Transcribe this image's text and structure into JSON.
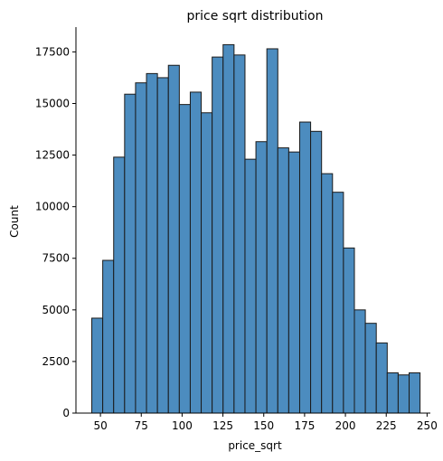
{
  "chart_data": {
    "type": "bar",
    "title": "price sqrt distribution",
    "xlabel": "price_sqrt",
    "ylabel": "Count",
    "bar_color": "#4c8cbf",
    "edge_color": "#1a1a1a",
    "xlim": [
      35,
      252
    ],
    "ylim": [
      0,
      18700
    ],
    "x_ticks": [
      50,
      75,
      100,
      125,
      150,
      175,
      200,
      225,
      250
    ],
    "y_ticks": [
      0,
      2500,
      5000,
      7500,
      10000,
      12500,
      15000,
      17500
    ],
    "bin_edges": [
      44.7,
      51.4,
      58.1,
      64.8,
      71.5,
      78.2,
      84.9,
      91.6,
      98.3,
      105.0,
      111.7,
      118.4,
      125.1,
      131.8,
      138.5,
      145.2,
      151.9,
      158.6,
      165.3,
      172.0,
      178.7,
      185.4,
      192.1,
      198.8,
      205.5,
      212.2,
      218.9,
      225.6,
      232.3,
      239.0,
      245.7
    ],
    "values": [
      4600,
      7400,
      12400,
      15450,
      16000,
      16450,
      16250,
      16850,
      14950,
      15550,
      14550,
      17250,
      17850,
      17350,
      12300,
      13150,
      17650,
      12850,
      12650,
      14100,
      13650,
      11600,
      10700,
      8000,
      5000,
      4350,
      3400,
      1950,
      1850,
      1950
    ],
    "grid": false,
    "legend": "none"
  }
}
